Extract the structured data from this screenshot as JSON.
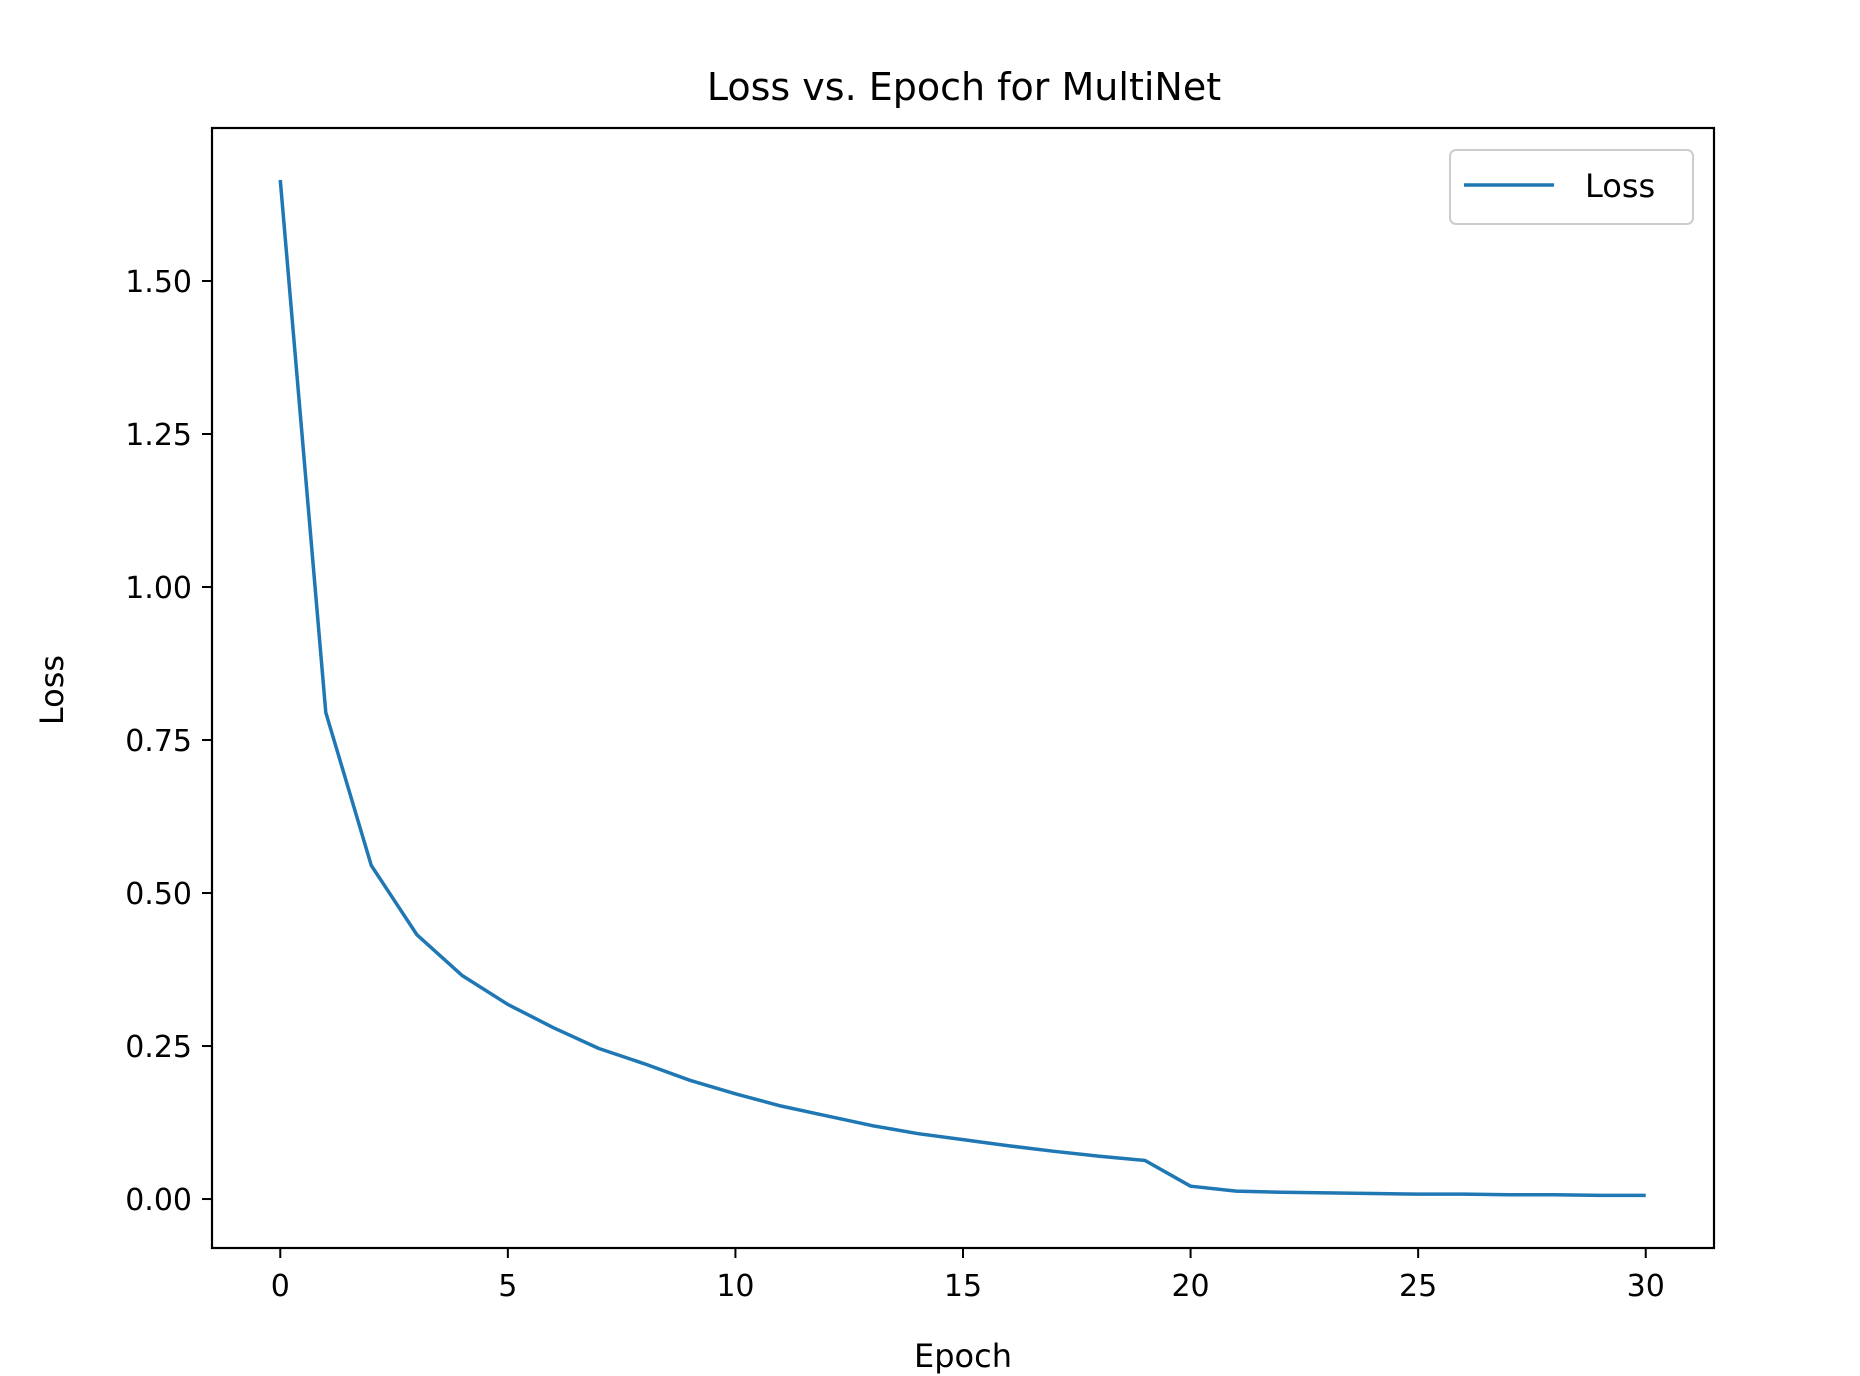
{
  "chart_data": {
    "type": "line",
    "title": "Loss vs. Epoch for MultiNet",
    "xlabel": "Epoch",
    "ylabel": "Loss",
    "xlim": [
      -1.5,
      31.5
    ],
    "ylim": [
      -0.08,
      1.75
    ],
    "xticks": [
      0,
      5,
      10,
      15,
      20,
      25,
      30
    ],
    "xtick_labels": [
      "0",
      "5",
      "10",
      "15",
      "20",
      "25",
      "30"
    ],
    "yticks": [
      0.0,
      0.25,
      0.5,
      0.75,
      1.0,
      1.25,
      1.5
    ],
    "ytick_labels": [
      "0.00",
      "0.25",
      "0.50",
      "0.75",
      "1.00",
      "1.25",
      "1.50"
    ],
    "grid": false,
    "legend_position": "top-right",
    "series": [
      {
        "name": "Loss",
        "color": "#1f77b4",
        "x": [
          0,
          1,
          2,
          3,
          4,
          5,
          6,
          7,
          8,
          9,
          10,
          11,
          12,
          13,
          14,
          15,
          16,
          17,
          18,
          19,
          20,
          21,
          22,
          23,
          24,
          25,
          26,
          27,
          28,
          29,
          30
        ],
        "y": [
          1.665,
          0.795,
          0.545,
          0.432,
          0.365,
          0.318,
          0.28,
          0.246,
          0.221,
          0.194,
          0.172,
          0.152,
          0.136,
          0.12,
          0.107,
          0.097,
          0.087,
          0.078,
          0.07,
          0.063,
          0.021,
          0.013,
          0.011,
          0.01,
          0.009,
          0.008,
          0.008,
          0.007,
          0.007,
          0.006,
          0.006
        ]
      }
    ]
  }
}
